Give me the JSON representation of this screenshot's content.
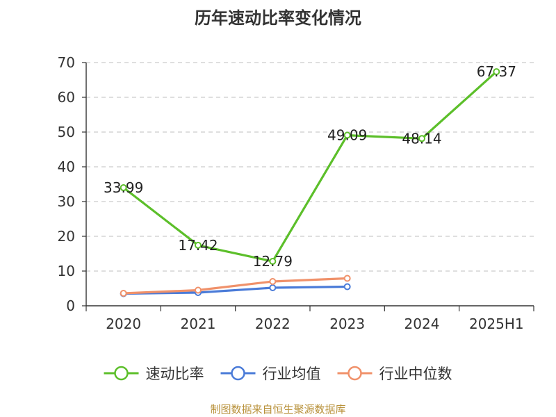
{
  "chart_data": {
    "type": "line",
    "title": "历年速动比率变化情况",
    "categories": [
      "2020",
      "2021",
      "2022",
      "2023",
      "2024",
      "2025H1"
    ],
    "ylim": [
      0,
      70
    ],
    "yticks": [
      0,
      10,
      20,
      30,
      40,
      50,
      60,
      70
    ],
    "grid": true,
    "legend_position": "bottom",
    "series": [
      {
        "name": "速动比率",
        "color": "#5cbf2a",
        "labeled": true,
        "values": [
          33.99,
          17.42,
          12.79,
          49.09,
          48.14,
          67.37
        ]
      },
      {
        "name": "行业均值",
        "color": "#4a7bd8",
        "labeled": false,
        "values": [
          3.5,
          3.8,
          5.2,
          5.5,
          null,
          null
        ]
      },
      {
        "name": "行业中位数",
        "color": "#f0916a",
        "labeled": false,
        "values": [
          3.6,
          4.5,
          7.0,
          7.9,
          null,
          null
        ]
      }
    ]
  },
  "source_note": "制图数据来自恒生聚源数据库"
}
